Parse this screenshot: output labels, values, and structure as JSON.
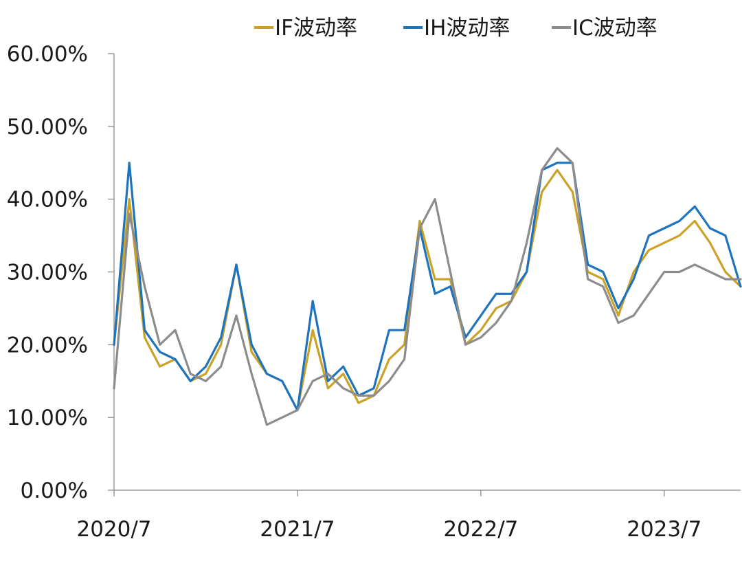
{
  "chart_data": {
    "type": "line",
    "title": "",
    "xlabel": "",
    "ylabel": "",
    "ylim": [
      0,
      60
    ],
    "y_ticks": [
      "0.00%",
      "10.00%",
      "20.00%",
      "30.00%",
      "40.00%",
      "50.00%",
      "60.00%"
    ],
    "x_ticks": [
      "2020/7",
      "2021/7",
      "2022/7",
      "2023/7"
    ],
    "grid": false,
    "legend_position": "top",
    "x": [
      "2020/7",
      "2020/8",
      "2020/9",
      "2020/10",
      "2020/11",
      "2020/12",
      "2021/1",
      "2021/2",
      "2021/3",
      "2021/4",
      "2021/5",
      "2021/6",
      "2021/7",
      "2021/8",
      "2021/9",
      "2021/10",
      "2021/11",
      "2021/12",
      "2022/1",
      "2022/2",
      "2022/3",
      "2022/4",
      "2022/5",
      "2022/6",
      "2022/7",
      "2022/8",
      "2022/9",
      "2022/10",
      "2022/11",
      "2022/12",
      "2023/1",
      "2023/2",
      "2023/3",
      "2023/4",
      "2023/5",
      "2023/6",
      "2023/7",
      "2023/8",
      "2023/9",
      "2023/10",
      "2023/11",
      "2023/12"
    ],
    "series": [
      {
        "name": "IF波动率",
        "color": "#C9A227",
        "values": [
          20,
          40,
          21,
          17,
          18,
          15,
          16,
          20,
          31,
          19,
          16,
          15,
          11,
          22,
          14,
          16,
          12,
          13,
          18,
          20,
          37,
          29,
          29,
          20,
          22,
          25,
          26,
          30,
          41,
          44,
          41,
          30,
          29,
          24,
          30,
          33,
          34,
          35,
          37,
          34,
          30,
          28
        ]
      },
      {
        "name": "IH波动率",
        "color": "#1E73BE",
        "values": [
          20,
          45,
          22,
          19,
          18,
          15,
          17,
          21,
          31,
          20,
          16,
          15,
          11,
          26,
          15,
          17,
          13,
          14,
          22,
          22,
          36,
          27,
          28,
          21,
          24,
          27,
          27,
          30,
          44,
          45,
          45,
          31,
          30,
          25,
          29,
          35,
          36,
          37,
          39,
          36,
          35,
          28
        ]
      },
      {
        "name": "IC波动率",
        "color": "#8C8C8C",
        "values": [
          14,
          38,
          28,
          20,
          22,
          16,
          15,
          17,
          24,
          16,
          9,
          10,
          11,
          15,
          16,
          14,
          13,
          13,
          15,
          18,
          36,
          40,
          30,
          20,
          21,
          23,
          26,
          34,
          44,
          47,
          45,
          29,
          28,
          23,
          24,
          27,
          30,
          30,
          31,
          30,
          29,
          29
        ]
      }
    ]
  }
}
